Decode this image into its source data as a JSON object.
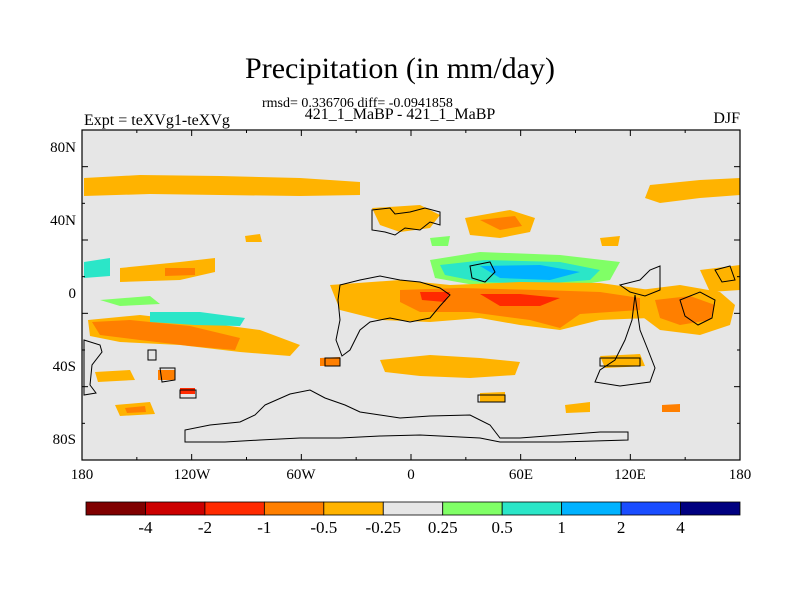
{
  "title": "Precipitation (in mm/day)",
  "stats": "rmsd= 0.336706 diff= -0.0941858",
  "subtitle": "421_1_MaBP - 421_1_MaBP",
  "left_label": "Expt = teXVg1-teXVg",
  "right_label": "DJF",
  "lat_labels": [
    "80N",
    "40N",
    "0",
    "40S",
    "80S"
  ],
  "lon_labels": [
    "180",
    "120W",
    "60W",
    "0",
    "60E",
    "120E",
    "180"
  ],
  "colorbar": {
    "colors": [
      "#800000",
      "#cc0000",
      "#ff2a00",
      "#ff7f00",
      "#ffb300",
      "#e6e6e6",
      "#80ff66",
      "#2be6c8",
      "#00b2ff",
      "#1a4dff",
      "#000080"
    ],
    "labels": [
      "-4",
      "-2",
      "-1",
      "-0.5",
      "-0.25",
      "0.25",
      "0.5",
      "1",
      "2",
      "4"
    ]
  },
  "colors": {
    "background": "#e6e6e6",
    "coast": "#000000"
  }
}
